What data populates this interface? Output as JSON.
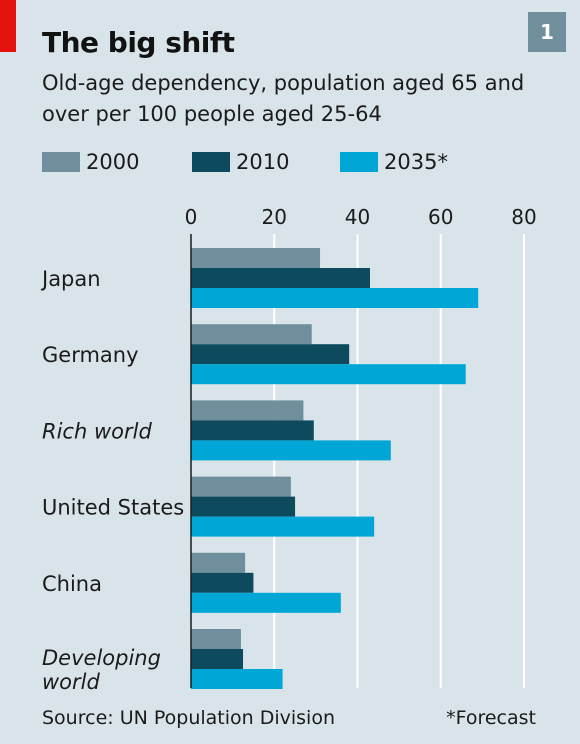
{
  "header": {
    "title": "The big shift",
    "badge": "1",
    "subtitle": "Old-age dependency, population aged 65 and over per 100 people aged 25-64"
  },
  "footer": {
    "source": "Source: UN Population Division",
    "note": "*Forecast"
  },
  "colors": {
    "background": "#d8e4ea",
    "accent_red": "#e3120b",
    "series_2000": "#6f8f9c",
    "series_2010": "#0d4a5e",
    "series_2035": "#00a6d6"
  },
  "chart_data": {
    "type": "bar",
    "orientation": "horizontal",
    "categories": [
      "Japan",
      "Germany",
      "Rich world",
      "United States",
      "China",
      "Developing world"
    ],
    "italic_categories": [
      "Rich world",
      "Developing world"
    ],
    "series": [
      {
        "name": "2000",
        "color": "#6f8f9c",
        "values": [
          31,
          29,
          27,
          24,
          13,
          12
        ]
      },
      {
        "name": "2010",
        "color": "#0d4a5e",
        "values": [
          43,
          38,
          29.5,
          25,
          15,
          12.5
        ]
      },
      {
        "name": "2035*",
        "color": "#00a6d6",
        "values": [
          69,
          66,
          48,
          44,
          36,
          22
        ]
      }
    ],
    "xlim": [
      0,
      80
    ],
    "xticks": [
      "0",
      "20",
      "40",
      "60",
      "80"
    ],
    "grid": true,
    "legend_position": "top"
  }
}
